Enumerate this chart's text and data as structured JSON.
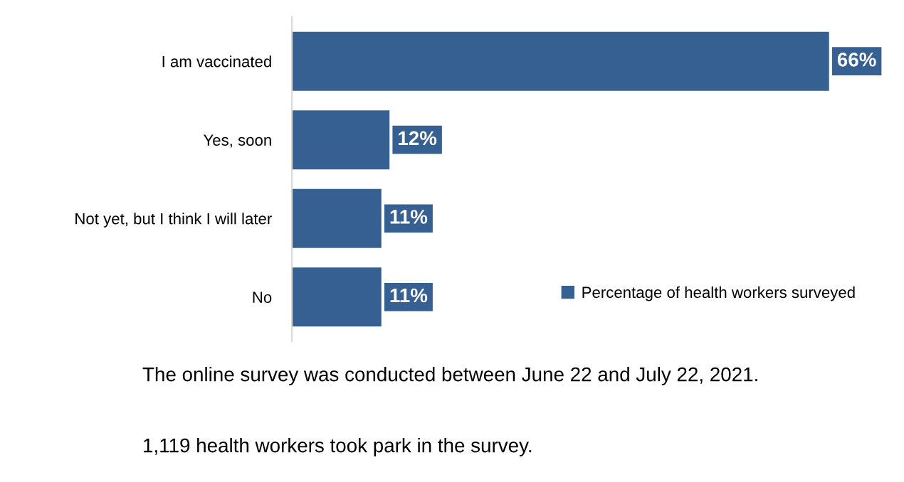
{
  "chart_data": {
    "type": "bar",
    "orientation": "horizontal",
    "categories": [
      "I am vaccinated",
      "Yes, soon",
      "Not yet, but I think I will later",
      "No"
    ],
    "series": [
      {
        "name": "Percentage of health workers surveyed",
        "color": "#366092",
        "values": [
          66,
          12,
          11,
          11
        ],
        "value_labels": [
          "66%",
          "12%",
          "11%",
          "11%"
        ]
      }
    ],
    "legend": "right",
    "grid": false,
    "annotations": [
      "The online survey was conducted between June 22 and July 22, 2021.",
      "1,119 health workers took park in the survey."
    ]
  }
}
